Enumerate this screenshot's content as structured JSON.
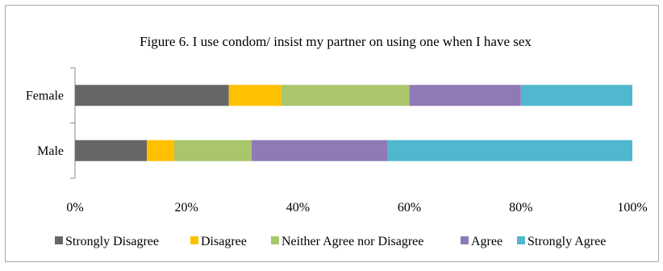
{
  "chart_data": {
    "type": "bar",
    "orientation": "horizontal",
    "stacked": true,
    "percent_stacked": true,
    "title": "Figure 6. I use condom/ insist my partner on using one when I have sex",
    "categories": [
      "Female",
      "Male"
    ],
    "series": [
      {
        "name": "Strongly Disagree",
        "color": "#666666",
        "values": [
          27.6,
          12.9
        ]
      },
      {
        "name": "Disagree",
        "color": "#ffc000",
        "values": [
          9.4,
          4.9
        ]
      },
      {
        "name": "Neither Agree nor Disagree",
        "color": "#a9c66b",
        "values": [
          23.0,
          13.9
        ]
      },
      {
        "name": "Agree",
        "color": "#8f7ab5",
        "values": [
          20.0,
          24.4
        ]
      },
      {
        "name": "Strongly Agree",
        "color": "#4fb8cf",
        "values": [
          20.0,
          43.9
        ]
      }
    ],
    "xlim": [
      0,
      100
    ],
    "x_ticks": [
      "0%",
      "20%",
      "40%",
      "60%",
      "80%",
      "100%"
    ],
    "grid": false,
    "legend_position": "bottom"
  }
}
